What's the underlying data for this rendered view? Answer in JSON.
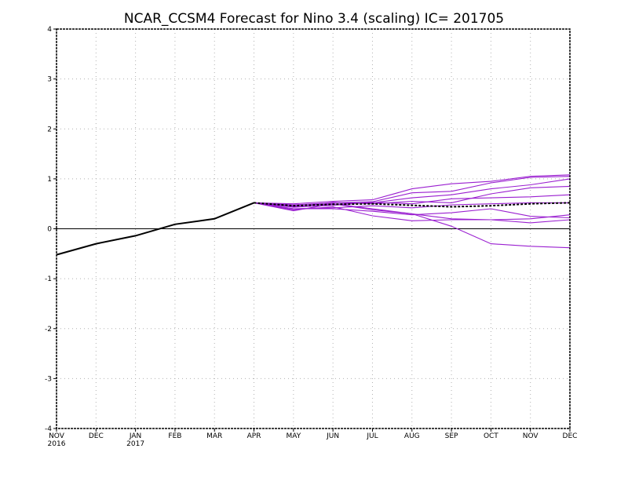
{
  "chart_data": {
    "type": "line",
    "title": "NCAR_CCSM4 Forecast for Nino 3.4 (scaling)  IC= 201705",
    "x_categories": [
      "NOV",
      "DEC",
      "JAN",
      "FEB",
      "MAR",
      "APR",
      "MAY",
      "JUN",
      "JUL",
      "AUG",
      "SEP",
      "OCT",
      "NOV",
      "DEC"
    ],
    "x_year_labels": [
      {
        "index": 0,
        "label": "2016"
      },
      {
        "index": 2,
        "label": "2017"
      }
    ],
    "y_ticks": [
      -4,
      -3,
      -2,
      -1,
      0,
      1,
      2,
      3,
      4
    ],
    "ylim": [
      -4,
      4
    ],
    "grid": true,
    "colors": {
      "observed": "#000000",
      "members": "#9a1fd0",
      "mean": "#000000",
      "zero_line": "#000000"
    },
    "observed": {
      "x_index": [
        0,
        1,
        2,
        3,
        4,
        5
      ],
      "values": [
        -0.52,
        -0.3,
        -0.14,
        0.09,
        0.2,
        0.52
      ]
    },
    "ensemble_mean": {
      "x_index": [
        5,
        6,
        7,
        8,
        9,
        10,
        11,
        12,
        13
      ],
      "values": [
        0.52,
        0.46,
        0.49,
        0.5,
        0.47,
        0.44,
        0.46,
        0.5,
        0.52
      ]
    },
    "members": [
      {
        "x_index": [
          5,
          6,
          7,
          8,
          9,
          10,
          11,
          12,
          13
        ],
        "values": [
          0.52,
          0.5,
          0.55,
          0.58,
          0.8,
          0.9,
          0.95,
          1.05,
          1.08
        ]
      },
      {
        "x_index": [
          5,
          6,
          7,
          8,
          9,
          10,
          11,
          12,
          13
        ],
        "values": [
          0.52,
          0.48,
          0.52,
          0.54,
          0.72,
          0.75,
          0.92,
          1.03,
          1.05
        ]
      },
      {
        "x_index": [
          5,
          6,
          7,
          8,
          9,
          10,
          11,
          12,
          13
        ],
        "values": [
          0.52,
          0.46,
          0.49,
          0.52,
          0.62,
          0.68,
          0.8,
          0.88,
          1.0
        ]
      },
      {
        "x_index": [
          5,
          6,
          7,
          8,
          9,
          10,
          11,
          12,
          13
        ],
        "values": [
          0.52,
          0.44,
          0.53,
          0.5,
          0.55,
          0.52,
          0.7,
          0.82,
          0.85
        ]
      },
      {
        "x_index": [
          5,
          6,
          7,
          8,
          9,
          10,
          11,
          12,
          13
        ],
        "values": [
          0.52,
          0.43,
          0.47,
          0.53,
          0.5,
          0.6,
          0.62,
          0.64,
          0.68
        ]
      },
      {
        "x_index": [
          5,
          6,
          7,
          8,
          9,
          10,
          11,
          12,
          13
        ],
        "values": [
          0.52,
          0.4,
          0.42,
          0.46,
          0.42,
          0.48,
          0.5,
          0.52,
          0.52
        ]
      },
      {
        "x_index": [
          5,
          6,
          7,
          8,
          9,
          10,
          11,
          12,
          13
        ],
        "values": [
          0.52,
          0.45,
          0.5,
          0.38,
          0.3,
          0.2,
          0.18,
          0.2,
          0.28
        ]
      },
      {
        "x_index": [
          5,
          6,
          7,
          8,
          9,
          10,
          11,
          12,
          13
        ],
        "values": [
          0.52,
          0.38,
          0.44,
          0.26,
          0.16,
          0.18,
          0.18,
          0.12,
          0.18
        ]
      },
      {
        "x_index": [
          5,
          6,
          7,
          8,
          9,
          10,
          11,
          12,
          13
        ],
        "values": [
          0.52,
          0.4,
          0.4,
          0.35,
          0.28,
          0.32,
          0.4,
          0.25,
          0.22
        ]
      },
      {
        "x_index": [
          5,
          6,
          7,
          8,
          9,
          10,
          11,
          12,
          13
        ],
        "values": [
          0.52,
          0.36,
          0.5,
          0.4,
          0.3,
          0.05,
          -0.3,
          -0.35,
          -0.38
        ]
      }
    ]
  }
}
